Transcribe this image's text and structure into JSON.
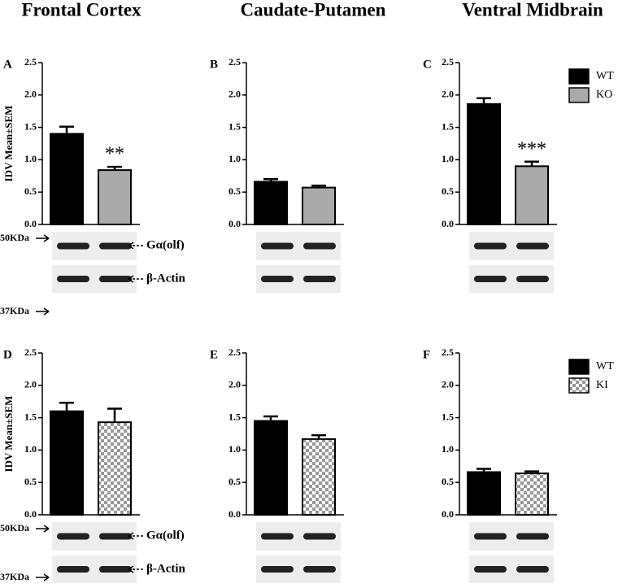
{
  "columns": [
    "Frontal Cortex",
    "Caudate-Putamen",
    "Ventral Midbrain"
  ],
  "blots": {
    "upper_marker": "50KDa",
    "lower_marker": "37KDa",
    "band1": "Gα(olf)",
    "band2": "β-Actin"
  },
  "chart_data": [
    {
      "type": "bar",
      "label": "A",
      "ylabel": "IDV Mean±SEM",
      "ylim": [
        0,
        2.5
      ],
      "yticks": [
        {
          "value": 0,
          "label": "0.0"
        },
        0.5,
        {
          "value": 1,
          "label": "1.0"
        },
        1.5,
        {
          "value": 2,
          "label": "2.0"
        },
        2.5
      ],
      "series": [
        {
          "color": "#000000",
          "values": [
            1.4
          ],
          "errors": [
            0.11
          ]
        },
        {
          "color": "#aaaaaa",
          "values": [
            0.84
          ],
          "errors": [
            0.05
          ],
          "annotation": "**"
        }
      ]
    },
    {
      "type": "bar",
      "label": "B",
      "ylim": [
        0,
        2.5
      ],
      "yticks": [
        {
          "value": 0,
          "label": "0.0"
        },
        0.5,
        {
          "value": 1,
          "label": "1.0"
        },
        1.5,
        {
          "value": 2,
          "label": "2.0"
        },
        2.5
      ],
      "series": [
        {
          "color": "#000000",
          "values": [
            0.66
          ],
          "errors": [
            0.04
          ]
        },
        {
          "color": "#aaaaaa",
          "values": [
            0.57
          ],
          "errors": [
            0.03
          ]
        }
      ]
    },
    {
      "type": "bar",
      "label": "C",
      "ylim": [
        0,
        2.5
      ],
      "yticks": [
        {
          "value": 0,
          "label": "0.0"
        },
        0.5,
        {
          "value": 1,
          "label": "1.0"
        },
        1.5,
        {
          "value": 2,
          "label": "2.0"
        },
        2.5
      ],
      "series": [
        {
          "name": "WT",
          "color": "#000000",
          "values": [
            1.86
          ],
          "errors": [
            0.09
          ]
        },
        {
          "name": "KO",
          "color": "#aaaaaa",
          "values": [
            0.9
          ],
          "errors": [
            0.07
          ],
          "annotation": "***"
        }
      ]
    },
    {
      "type": "bar",
      "label": "D",
      "ylabel": "IDV Mean±SEM",
      "ylim": [
        0,
        2.5
      ],
      "yticks": [
        {
          "value": 0,
          "label": "0.0"
        },
        0.5,
        {
          "value": 1,
          "label": "1.0"
        },
        1.5,
        {
          "value": 2,
          "label": "2.0"
        },
        2.5
      ],
      "series": [
        {
          "color": "#000000",
          "values": [
            1.6
          ],
          "errors": [
            0.13
          ]
        },
        {
          "color": "#999999",
          "pattern": "checker",
          "values": [
            1.43
          ],
          "errors": [
            0.21
          ]
        }
      ]
    },
    {
      "type": "bar",
      "label": "E",
      "ylim": [
        0,
        2.5
      ],
      "yticks": [
        {
          "value": 0,
          "label": "0.0"
        },
        0.5,
        {
          "value": 1,
          "label": "1.0"
        },
        1.5,
        {
          "value": 2,
          "label": "2.0"
        },
        2.5
      ],
      "series": [
        {
          "color": "#000000",
          "values": [
            1.45
          ],
          "errors": [
            0.07
          ]
        },
        {
          "color": "#999999",
          "pattern": "checker",
          "values": [
            1.17
          ],
          "errors": [
            0.06
          ]
        }
      ]
    },
    {
      "type": "bar",
      "label": "F",
      "ylim": [
        0,
        2.5
      ],
      "yticks": [
        {
          "value": 0,
          "label": "0.0"
        },
        0.5,
        {
          "value": 1,
          "label": "1.0"
        },
        1.5,
        {
          "value": 2,
          "label": "2.0"
        },
        2.5
      ],
      "series": [
        {
          "name": "WT",
          "color": "#000000",
          "values": [
            0.66
          ],
          "errors": [
            0.05
          ]
        },
        {
          "name": "KI",
          "color": "#999999",
          "pattern": "checker",
          "values": [
            0.64
          ],
          "errors": [
            0.03
          ]
        }
      ]
    }
  ]
}
